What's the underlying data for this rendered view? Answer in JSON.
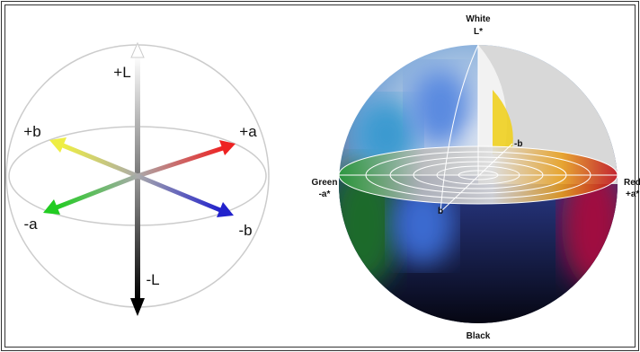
{
  "left_diagram": {
    "labels": {
      "plus_l": "+L",
      "minus_l": "-L",
      "plus_a": "+a",
      "minus_a": "-a",
      "plus_b": "+b",
      "minus_b": "-b"
    }
  },
  "right_diagram": {
    "labels": {
      "white": "White",
      "l_star": "L*",
      "black": "Black",
      "green": "Green",
      "minus_a_star": "-a*",
      "red": "Red",
      "plus_a_star": "+a*",
      "minus_b": "-b",
      "b": "b"
    }
  }
}
